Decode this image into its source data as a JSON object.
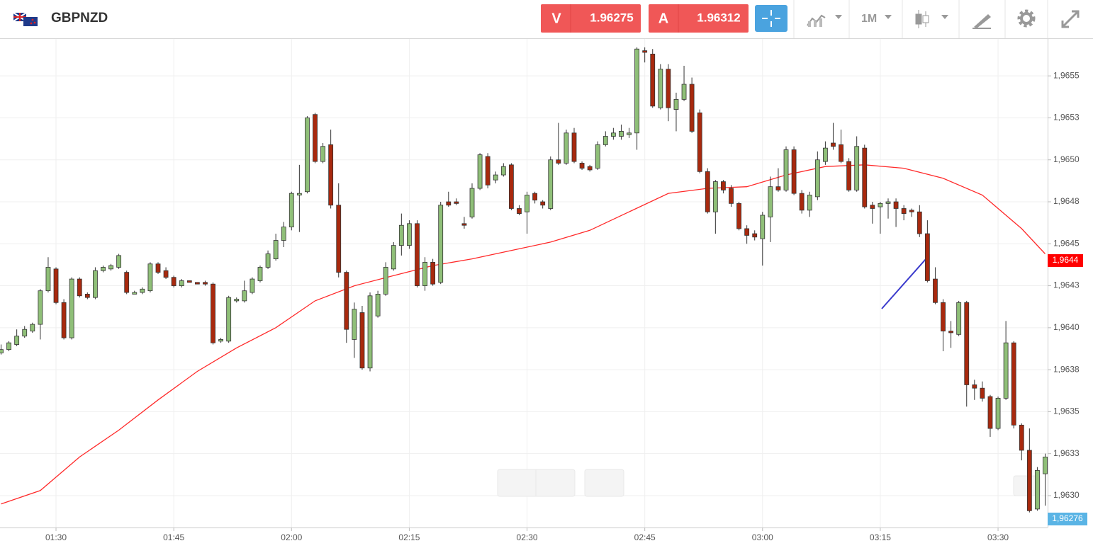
{
  "header": {
    "symbol": "GBPNZD",
    "sell_label": "V",
    "sell_price": "1.96275",
    "buy_label": "A",
    "buy_price": "1.96312",
    "timeframe": "1M"
  },
  "chart_data": {
    "type": "candlestick",
    "x": [
      "01:23",
      "01:24",
      "01:25",
      "01:26",
      "01:27",
      "01:28",
      "01:29",
      "01:30",
      "01:31",
      "01:32",
      "01:33",
      "01:34",
      "01:35",
      "01:36",
      "01:37",
      "01:38",
      "01:39",
      "01:40",
      "01:41",
      "01:42",
      "01:43",
      "01:44",
      "01:45",
      "01:46",
      "01:47",
      "01:48",
      "01:49",
      "01:50",
      "01:51",
      "01:52",
      "01:53",
      "01:54",
      "01:55",
      "01:56",
      "01:57",
      "01:58",
      "01:59",
      "02:00",
      "02:01",
      "02:02",
      "02:03",
      "02:04",
      "02:05",
      "02:06",
      "02:07",
      "02:08",
      "02:09",
      "02:10",
      "02:11",
      "02:12",
      "02:13",
      "02:14",
      "02:15",
      "02:16",
      "02:17",
      "02:18",
      "02:19",
      "02:20",
      "02:21",
      "02:22",
      "02:23",
      "02:24",
      "02:25",
      "02:26",
      "02:27",
      "02:28",
      "02:29",
      "02:30",
      "02:31",
      "02:32",
      "02:33",
      "02:34",
      "02:35",
      "02:36",
      "02:37",
      "02:38",
      "02:39",
      "02:40",
      "02:41",
      "02:42",
      "02:43",
      "02:44",
      "02:45",
      "02:46",
      "02:47",
      "02:48",
      "02:49",
      "02:50",
      "02:51",
      "02:52",
      "02:53",
      "02:54",
      "02:55",
      "02:56",
      "02:57",
      "02:58",
      "02:59",
      "03:00",
      "03:01",
      "03:02",
      "03:03",
      "03:04",
      "03:05",
      "03:06",
      "03:07",
      "03:08",
      "03:09",
      "03:10",
      "03:11",
      "03:12",
      "03:13",
      "03:14",
      "03:15",
      "03:16",
      "03:17",
      "03:18",
      "03:19",
      "03:20",
      "03:21",
      "03:22",
      "03:23",
      "03:24",
      "03:25",
      "03:26",
      "03:27",
      "03:28",
      "03:29",
      "03:30",
      "03:31",
      "03:32",
      "03:33",
      "03:34",
      "03:35",
      "03:36"
    ],
    "open": [
      1.96385,
      1.96387,
      1.9639,
      1.96395,
      1.96398,
      1.96402,
      1.96422,
      1.96435,
      1.96415,
      1.96394,
      1.96429,
      1.9642,
      1.96418,
      1.96434,
      1.96435,
      1.96436,
      1.96433,
      1.9642,
      1.96421,
      1.96422,
      1.96438,
      1.96434,
      1.9643,
      1.96425,
      1.96428,
      1.96427,
      1.96427,
      1.96426,
      1.96392,
      1.96392,
      1.96416,
      1.96416,
      1.96421,
      1.96428,
      1.96436,
      1.96441,
      1.96452,
      1.9646,
      1.96479,
      1.96481,
      1.96527,
      1.96499,
      1.96509,
      1.96473,
      1.96433,
      1.96393,
      1.96409,
      1.96376,
      1.96407,
      1.9642,
      1.96435,
      1.96449,
      1.96449,
      1.96462,
      1.96425,
      1.96439,
      1.96427,
      1.96475,
      1.96475,
      1.96462,
      1.96466,
      1.96483,
      1.96502,
      1.96488,
      1.96491,
      1.96497,
      1.96471,
      1.96469,
      1.9648,
      1.96475,
      1.96471,
      1.965,
      1.96498,
      1.96516,
      1.96498,
      1.96496,
      1.96495,
      1.96509,
      1.96514,
      1.96514,
      1.96515,
      1.96516,
      1.96565,
      1.96563,
      1.96531,
      1.96554,
      1.9653,
      1.96536,
      1.96545,
      1.96528,
      1.96493,
      1.96469,
      1.96487,
      1.96483,
      1.96474,
      1.96459,
      1.96456,
      1.96453,
      1.96466,
      1.96484,
      1.96482,
      1.96506,
      1.9648,
      1.9647,
      1.96478,
      1.96499,
      1.9651,
      1.96509,
      1.96499,
      1.96482,
      1.96507,
      1.96473,
      1.96472,
      1.96474,
      1.96475,
      1.96471,
      1.9647,
      1.96469,
      1.96456,
      1.96429,
      1.96415,
      1.96398,
      1.96396,
      1.96415,
      1.96366,
      1.96364,
      1.96359,
      1.9634,
      1.96358,
      1.96391,
      1.96342,
      1.96327,
      1.96292,
      1.96313
    ],
    "high": [
      1.9639,
      1.96392,
      1.96399,
      1.96401,
      1.96403,
      1.96423,
      1.96442,
      1.96436,
      1.96417,
      1.9643,
      1.9643,
      1.96421,
      1.96436,
      1.96437,
      1.96438,
      1.96444,
      1.96434,
      1.96422,
      1.96424,
      1.96439,
      1.96439,
      1.96436,
      1.96431,
      1.96429,
      1.96428,
      1.96427,
      1.96428,
      1.96427,
      1.96394,
      1.96419,
      1.96418,
      1.96428,
      1.9643,
      1.96437,
      1.96446,
      1.96456,
      1.96463,
      1.96481,
      1.96497,
      1.96526,
      1.96528,
      1.9651,
      1.96518,
      1.96486,
      1.96434,
      1.96415,
      1.96413,
      1.96421,
      1.96422,
      1.96439,
      1.96451,
      1.96468,
      1.96464,
      1.96464,
      1.96442,
      1.96441,
      1.96475,
      1.96481,
      1.96477,
      1.96466,
      1.96486,
      1.96504,
      1.96504,
      1.96493,
      1.96498,
      1.96498,
      1.96473,
      1.96481,
      1.96481,
      1.96476,
      1.96502,
      1.96522,
      1.96518,
      1.96519,
      1.96499,
      1.96497,
      1.96511,
      1.96517,
      1.96519,
      1.96521,
      1.96519,
      1.96567,
      1.96567,
      1.96566,
      1.96557,
      1.96557,
      1.9654,
      1.96556,
      1.96549,
      1.9653,
      1.96495,
      1.96488,
      1.96488,
      1.96485,
      1.96475,
      1.96461,
      1.96458,
      1.96469,
      1.9649,
      1.96495,
      1.96508,
      1.96508,
      1.96482,
      1.96481,
      1.96505,
      1.96511,
      1.96522,
      1.96518,
      1.96501,
      1.96514,
      1.96509,
      1.96475,
      1.96475,
      1.96477,
      1.96477,
      1.96473,
      1.96471,
      1.96473,
      1.96464,
      1.96436,
      1.96417,
      1.96404,
      1.96416,
      1.96416,
      1.96369,
      1.96368,
      1.9636,
      1.96359,
      1.96404,
      1.96392,
      1.96343,
      1.9634,
      1.96317,
      1.96325
    ],
    "low": [
      1.96384,
      1.96386,
      1.96389,
      1.96394,
      1.96397,
      1.96393,
      1.96421,
      1.96414,
      1.96393,
      1.96393,
      1.96418,
      1.96417,
      1.96417,
      1.96433,
      1.96434,
      1.96435,
      1.9642,
      1.9642,
      1.9642,
      1.96421,
      1.96432,
      1.96429,
      1.96424,
      1.96424,
      1.96427,
      1.96426,
      1.96425,
      1.9639,
      1.96391,
      1.96391,
      1.96415,
      1.96415,
      1.9642,
      1.96427,
      1.96435,
      1.9644,
      1.96448,
      1.96458,
      1.96457,
      1.9648,
      1.96498,
      1.96498,
      1.96471,
      1.9643,
      1.96391,
      1.96382,
      1.96375,
      1.96374,
      1.96406,
      1.96419,
      1.96434,
      1.96443,
      1.96447,
      1.96424,
      1.96422,
      1.96425,
      1.96426,
      1.96472,
      1.96473,
      1.96459,
      1.96465,
      1.96482,
      1.96483,
      1.96486,
      1.9649,
      1.9647,
      1.96467,
      1.96456,
      1.96474,
      1.96471,
      1.9647,
      1.96497,
      1.96497,
      1.96498,
      1.96494,
      1.96493,
      1.96494,
      1.96508,
      1.96512,
      1.96512,
      1.96513,
      1.96506,
      1.96558,
      1.96531,
      1.9653,
      1.96523,
      1.96517,
      1.96535,
      1.96516,
      1.96492,
      1.96468,
      1.96456,
      1.9648,
      1.96472,
      1.96458,
      1.9645,
      1.96452,
      1.96437,
      1.96451,
      1.96481,
      1.96481,
      1.96479,
      1.96468,
      1.96466,
      1.96476,
      1.96497,
      1.96506,
      1.96498,
      1.96481,
      1.96481,
      1.96471,
      1.96462,
      1.96456,
      1.96465,
      1.9646,
      1.96464,
      1.96466,
      1.96454,
      1.96427,
      1.96414,
      1.96386,
      1.96388,
      1.96395,
      1.96353,
      1.96357,
      1.96356,
      1.96335,
      1.96339,
      1.96357,
      1.9634,
      1.96321,
      1.9629,
      1.96291,
      1.96294
    ],
    "close": [
      1.96387,
      1.96391,
      1.96395,
      1.96399,
      1.96402,
      1.96422,
      1.96436,
      1.96415,
      1.96394,
      1.96429,
      1.96419,
      1.96418,
      1.96434,
      1.96436,
      1.96437,
      1.96443,
      1.96421,
      1.96421,
      1.96423,
      1.96438,
      1.96433,
      1.9643,
      1.96425,
      1.96428,
      1.96427,
      1.96426,
      1.96426,
      1.96391,
      1.96393,
      1.96418,
      1.96417,
      1.96422,
      1.96429,
      1.96436,
      1.96444,
      1.96452,
      1.9646,
      1.9648,
      1.9648,
      1.96525,
      1.96499,
      1.96508,
      1.96473,
      1.96433,
      1.96399,
      1.96411,
      1.96376,
      1.96419,
      1.9642,
      1.96436,
      1.96449,
      1.96461,
      1.96462,
      1.96425,
      1.96439,
      1.96426,
      1.96473,
      1.96473,
      1.96474,
      1.96461,
      1.96483,
      1.96503,
      1.96485,
      1.96491,
      1.96496,
      1.96471,
      1.96468,
      1.96479,
      1.96476,
      1.96473,
      1.965,
      1.96498,
      1.96516,
      1.96499,
      1.96495,
      1.96494,
      1.96509,
      1.96514,
      1.96516,
      1.96517,
      1.96516,
      1.96566,
      1.96564,
      1.96532,
      1.96554,
      1.96531,
      1.96536,
      1.96545,
      1.96517,
      1.96493,
      1.96469,
      1.96487,
      1.96482,
      1.96474,
      1.96459,
      1.96455,
      1.96454,
      1.96467,
      1.96484,
      1.96482,
      1.96506,
      1.9648,
      1.9647,
      1.96479,
      1.965,
      1.96507,
      1.96508,
      1.96499,
      1.96482,
      1.96508,
      1.96472,
      1.96471,
      1.96474,
      1.96475,
      1.96471,
      1.96468,
      1.96469,
      1.96456,
      1.96428,
      1.96415,
      1.96398,
      1.96397,
      1.96415,
      1.96366,
      1.96364,
      1.96358,
      1.9634,
      1.96358,
      1.96391,
      1.96342,
      1.96327,
      1.96291,
      1.96315,
      1.96323
    ],
    "up_color": "#8fbf78",
    "down_color": "#a8290e",
    "moving_average": {
      "color": "#ff2a2a",
      "x": [
        "01:23",
        "01:28",
        "01:33",
        "01:38",
        "01:43",
        "01:48",
        "01:53",
        "01:58",
        "02:03",
        "02:08",
        "02:13",
        "02:18",
        "02:23",
        "02:28",
        "02:33",
        "02:38",
        "02:43",
        "02:48",
        "02:53",
        "02:58",
        "03:03",
        "03:08",
        "03:13",
        "03:18",
        "03:23",
        "03:28",
        "03:33",
        "03:36"
      ],
      "values": [
        1.96295,
        1.96303,
        1.96323,
        1.96339,
        1.96357,
        1.96374,
        1.96388,
        1.964,
        1.96416,
        1.96425,
        1.96431,
        1.96437,
        1.96441,
        1.96446,
        1.96451,
        1.96458,
        1.96469,
        1.9648,
        1.96483,
        1.96484,
        1.96491,
        1.96496,
        1.96497,
        1.96495,
        1.96489,
        1.96479,
        1.96459,
        1.96444
      ]
    },
    "ma_price": {
      "value": 1.9644,
      "label": "1,9644"
    },
    "last_price": {
      "value": 1.96276,
      "label": "1,96276"
    },
    "xlim": [
      "01:23",
      "03:36"
    ],
    "ylim": [
      1.96281,
      1.96572
    ],
    "xticks": [
      "01:30",
      "01:45",
      "02:00",
      "02:15",
      "02:30",
      "02:45",
      "03:00",
      "03:15",
      "03:30"
    ],
    "yticks": [
      {
        "value": 1.963,
        "label": "1,9630"
      },
      {
        "value": 1.96325,
        "label": "1,9633"
      },
      {
        "value": 1.9635,
        "label": "1,9635"
      },
      {
        "value": 1.96375,
        "label": "1,9638"
      },
      {
        "value": 1.964,
        "label": "1,9640"
      },
      {
        "value": 1.96425,
        "label": "1,9643"
      },
      {
        "value": 1.9645,
        "label": "1,9645"
      },
      {
        "value": 1.96475,
        "label": "1,9648"
      },
      {
        "value": 1.965,
        "label": "1,9650"
      },
      {
        "value": 1.96525,
        "label": "1,9653"
      },
      {
        "value": 1.9655,
        "label": "1,9655"
      }
    ],
    "grid": true
  }
}
